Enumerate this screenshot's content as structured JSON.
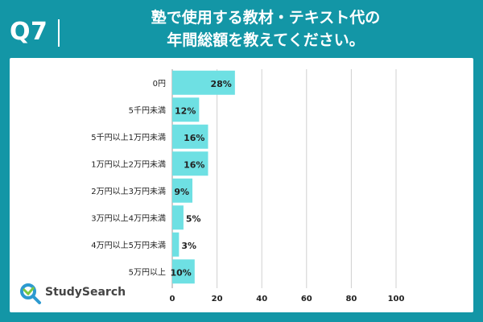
{
  "header": {
    "question": "Q7",
    "title_line1": "塾で使用する教材・テキスト代の",
    "title_line2": "年間総額を教えてください。"
  },
  "brand": {
    "name": "StudySearch"
  },
  "colors": {
    "background": "#1396a6",
    "bar": "#6ee0e3",
    "grid": "#d0d0d0",
    "text": "#222222"
  },
  "chart_data": {
    "type": "bar",
    "orientation": "horizontal",
    "categories": [
      "0円",
      "5千円未満",
      "5千円以上1万円未満",
      "1万円以上2万円未満",
      "2万円以上3万円未満",
      "3万円以上4万円未満",
      "4万円以上5万円未満",
      "5万円以上"
    ],
    "values": [
      28,
      12,
      16,
      16,
      9,
      5,
      3,
      10
    ],
    "data_labels": [
      "28%",
      "12%",
      "16%",
      "16%",
      "9%",
      "5%",
      "3%",
      "10%"
    ],
    "xlim": [
      0,
      100
    ],
    "xticks": [
      "0",
      "20",
      "40",
      "60",
      "80",
      "100"
    ],
    "title": "",
    "xlabel": "",
    "ylabel": "",
    "grid": true
  }
}
